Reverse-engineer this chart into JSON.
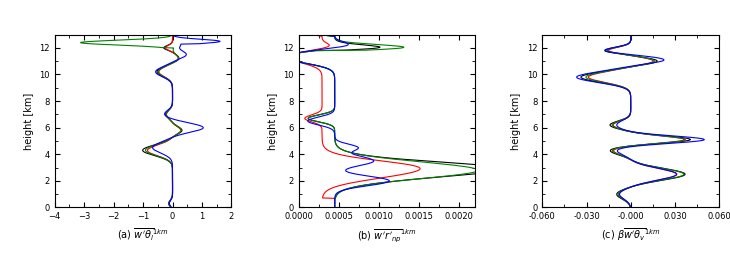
{
  "title_a": "(a) $\\overline{w'\\theta_l}^{1km}$",
  "title_b": "(b) $\\overline{w'r'_{np}}^{1km}$",
  "title_c": "(c) $\\beta\\overline{w'\\theta_v}^{1km}$",
  "ylabel": "height [km]",
  "xlim_a": [
    -4.0,
    2.0
  ],
  "xlim_b": [
    0.0,
    0.0022
  ],
  "xlim_c": [
    -0.06,
    0.06
  ],
  "xticks_a": [
    -4.0,
    -3.0,
    -2.0,
    -1.0,
    0.0,
    1.0,
    2.0
  ],
  "xticks_b": [
    0.0,
    0.0005,
    0.001,
    0.0015,
    0.002
  ],
  "xticks_c": [
    -0.06,
    -0.03,
    -0.0,
    0.03,
    0.06
  ],
  "ylim": [
    0,
    13
  ],
  "yticks": [
    0,
    2,
    4,
    6,
    8,
    10,
    12
  ],
  "colors": [
    "black",
    "red",
    "green",
    "blue"
  ],
  "lw": 0.8
}
